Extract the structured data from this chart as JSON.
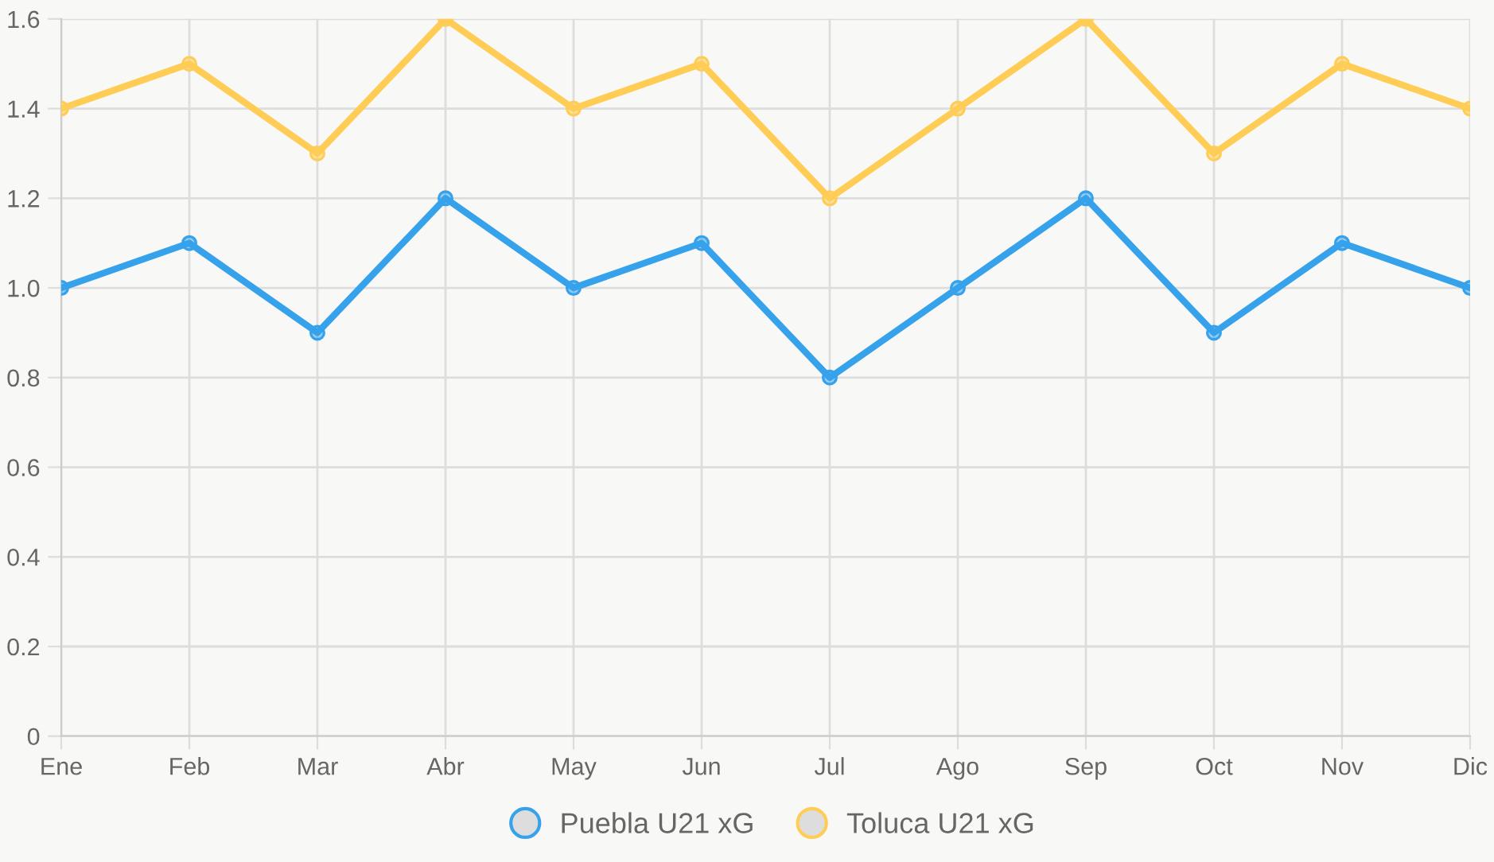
{
  "chart_data": {
    "type": "line",
    "categories": [
      "Ene",
      "Feb",
      "Mar",
      "Abr",
      "May",
      "Jun",
      "Jul",
      "Ago",
      "Sep",
      "Oct",
      "Nov",
      "Dic"
    ],
    "series": [
      {
        "name": "Puebla U21 xG",
        "color": "#36a2eb",
        "values": [
          1.0,
          1.1,
          0.9,
          1.2,
          1.0,
          1.1,
          0.8,
          1.0,
          1.2,
          0.9,
          1.1,
          1.0
        ]
      },
      {
        "name": "Toluca U21 xG",
        "color": "#ffcd56",
        "values": [
          1.4,
          1.5,
          1.3,
          1.6,
          1.4,
          1.5,
          1.2,
          1.4,
          1.6,
          1.3,
          1.5,
          1.4
        ]
      }
    ],
    "ylim": [
      0,
      1.6
    ],
    "yticks": [
      0,
      0.2,
      0.4,
      0.6,
      0.8,
      {
        "value": 1,
        "label": "1.0"
      },
      1.2,
      1.4,
      1.6
    ],
    "grid": true,
    "legend": "bottom",
    "marker": "circle",
    "line_style": "solid"
  }
}
